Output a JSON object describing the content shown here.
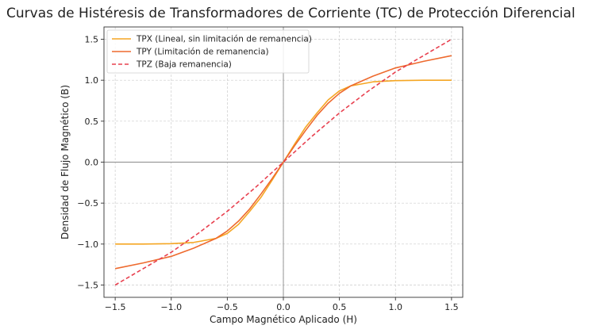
{
  "chart_data": {
    "type": "line",
    "title": "Curvas de Histéresis de Transformadores de Corriente (TC) de Protección Diferencial",
    "xlabel": "Campo Magnético Aplicado (H)",
    "ylabel": "Densidad de Flujo Magnético (B)",
    "xlim": [
      -1.6,
      1.6
    ],
    "ylim": [
      -1.65,
      1.65
    ],
    "xticks": [
      -1.5,
      -1.0,
      -0.5,
      0.0,
      0.5,
      1.0,
      1.5
    ],
    "yticks": [
      -1.5,
      -1.0,
      -0.5,
      0.0,
      0.5,
      1.0,
      1.5
    ],
    "xtick_labels": [
      "−1.5",
      "−1.0",
      "−0.5",
      "0.0",
      "0.5",
      "1.0",
      "1.5"
    ],
    "ytick_labels": [
      "−1.5",
      "−1.0",
      "−0.5",
      "0.0",
      "0.5",
      "1.0",
      "1.5"
    ],
    "grid": true,
    "legend_position": "top-left",
    "series": [
      {
        "name": "TPX (Lineal, sin limitación de remanencia)",
        "color": "#f5a623",
        "style": "solid",
        "x": [
          -1.5,
          -1.25,
          -1.0,
          -0.8,
          -0.6,
          -0.5,
          -0.4,
          -0.3,
          -0.2,
          -0.1,
          0.0,
          0.1,
          0.2,
          0.3,
          0.4,
          0.5,
          0.6,
          0.8,
          1.0,
          1.25,
          1.5
        ],
        "y": [
          -1.0,
          -1.0,
          -0.995,
          -0.98,
          -0.93,
          -0.87,
          -0.76,
          -0.6,
          -0.43,
          -0.22,
          0.0,
          0.22,
          0.43,
          0.6,
          0.76,
          0.87,
          0.93,
          0.98,
          0.995,
          1.0,
          1.0
        ]
      },
      {
        "name": "TPY (Limitación de remanencia)",
        "color": "#ee6a2e",
        "style": "solid",
        "x": [
          -1.5,
          -1.25,
          -1.0,
          -0.8,
          -0.6,
          -0.5,
          -0.4,
          -0.3,
          -0.2,
          -0.1,
          0.0,
          0.1,
          0.2,
          0.3,
          0.4,
          0.5,
          0.6,
          0.8,
          1.0,
          1.25,
          1.5
        ],
        "y": [
          -1.3,
          -1.23,
          -1.15,
          -1.05,
          -0.93,
          -0.84,
          -0.72,
          -0.57,
          -0.39,
          -0.2,
          0.0,
          0.2,
          0.39,
          0.57,
          0.72,
          0.84,
          0.93,
          1.05,
          1.15,
          1.23,
          1.3
        ]
      },
      {
        "name": "TPZ (Baja remanencia)",
        "color": "#e8404f",
        "style": "dashed",
        "x": [
          -1.5,
          -1.25,
          -1.0,
          -0.75,
          -0.5,
          -0.25,
          0.0,
          0.25,
          0.5,
          0.75,
          1.0,
          1.25,
          1.5
        ],
        "y": [
          -1.5,
          -1.3,
          -1.1,
          -0.86,
          -0.6,
          -0.31,
          0.0,
          0.31,
          0.6,
          0.86,
          1.1,
          1.3,
          1.5
        ]
      }
    ]
  }
}
